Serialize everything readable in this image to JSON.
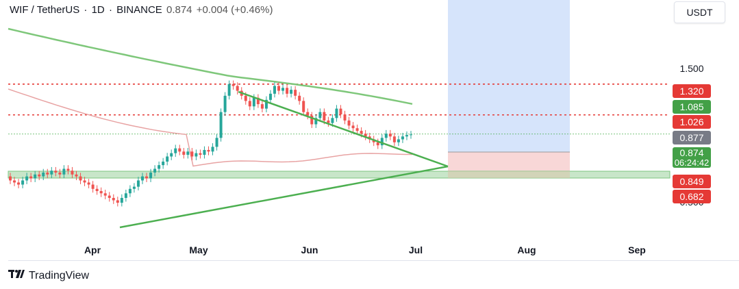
{
  "header": {
    "symbol": "WIF / TetherUS",
    "interval": "1D",
    "exchange": "BINANCE",
    "price": "0.874",
    "change": "+0.004 (+0.46%)"
  },
  "currency_label": "USDT",
  "footer": {
    "brand": "TradingView"
  },
  "colors": {
    "up": "#26a69a",
    "down": "#ef5350",
    "trendline": "#4caf50",
    "ma_long": "#7ec77a",
    "ma_short": "#e8a3a3",
    "resistance": "#e53935",
    "support_zone": "#c8e6c9",
    "target_zone": "#d6e4fb",
    "stop_zone": "#f8d7d7"
  },
  "chart_data": {
    "type": "candlestick",
    "x_ticks": [
      "Apr",
      "May",
      "Jun",
      "Jul",
      "Aug",
      "Sep"
    ],
    "y_ticks": [
      "1.500"
    ],
    "price_labels": [
      {
        "value": "1.320",
        "color": "#e53935"
      },
      {
        "value": "1.085",
        "color": "#43a047"
      },
      {
        "value": "1.026",
        "color": "#e53935"
      },
      {
        "value": "0.877",
        "color": "#787b86"
      },
      {
        "value": "0.874",
        "color": "#43a047",
        "sub": "06:24:42"
      },
      {
        "value": "0.849",
        "color": "#e53935"
      },
      {
        "value": "0.682",
        "color": "#e53935"
      }
    ],
    "hidden_tick": "0.500",
    "horizontal_levels": [
      1.32,
      1.026,
      0.877
    ],
    "candles_close": [
      0.6,
      0.59,
      0.58,
      0.6,
      0.62,
      0.61,
      0.63,
      0.62,
      0.64,
      0.63,
      0.65,
      0.64,
      0.63,
      0.66,
      0.65,
      0.63,
      0.62,
      0.6,
      0.59,
      0.58,
      0.56,
      0.55,
      0.54,
      0.53,
      0.52,
      0.51,
      0.5,
      0.52,
      0.54,
      0.56,
      0.57,
      0.6,
      0.62,
      0.61,
      0.64,
      0.66,
      0.68,
      0.7,
      0.73,
      0.75,
      0.78,
      0.76,
      0.74,
      0.76,
      0.73,
      0.75,
      0.74,
      0.77,
      0.76,
      0.79,
      0.85,
      1.05,
      1.2,
      1.32,
      1.3,
      1.25,
      1.2,
      1.15,
      1.1,
      1.18,
      1.12,
      1.08,
      1.16,
      1.22,
      1.3,
      1.25,
      1.28,
      1.22,
      1.26,
      1.2,
      1.15,
      1.05,
      1.02,
      0.95,
      1.0,
      1.05,
      0.98,
      0.96,
      1.0,
      1.08,
      1.03,
      0.98,
      0.94,
      0.92,
      0.9,
      0.88,
      0.86,
      0.84,
      0.82,
      0.8,
      0.85,
      0.88,
      0.86,
      0.82,
      0.84,
      0.86,
      0.87,
      0.874
    ],
    "candles_open": [
      0.62,
      0.6,
      0.59,
      0.58,
      0.6,
      0.62,
      0.61,
      0.63,
      0.62,
      0.64,
      0.63,
      0.65,
      0.64,
      0.63,
      0.66,
      0.65,
      0.63,
      0.62,
      0.6,
      0.59,
      0.58,
      0.56,
      0.55,
      0.54,
      0.53,
      0.52,
      0.51,
      0.5,
      0.52,
      0.54,
      0.56,
      0.57,
      0.6,
      0.62,
      0.61,
      0.64,
      0.66,
      0.68,
      0.7,
      0.73,
      0.75,
      0.78,
      0.76,
      0.74,
      0.76,
      0.73,
      0.75,
      0.74,
      0.77,
      0.76,
      0.79,
      0.85,
      1.05,
      1.2,
      1.32,
      1.3,
      1.25,
      1.2,
      1.15,
      1.1,
      1.18,
      1.12,
      1.08,
      1.16,
      1.22,
      1.3,
      1.25,
      1.28,
      1.22,
      1.26,
      1.2,
      1.15,
      1.05,
      1.02,
      0.95,
      1.0,
      1.05,
      0.98,
      0.96,
      1.0,
      1.08,
      1.03,
      0.98,
      0.94,
      0.92,
      0.9,
      0.88,
      0.86,
      0.84,
      0.82,
      0.8,
      0.85,
      0.88,
      0.86,
      0.82,
      0.84,
      0.86,
      0.87
    ]
  }
}
